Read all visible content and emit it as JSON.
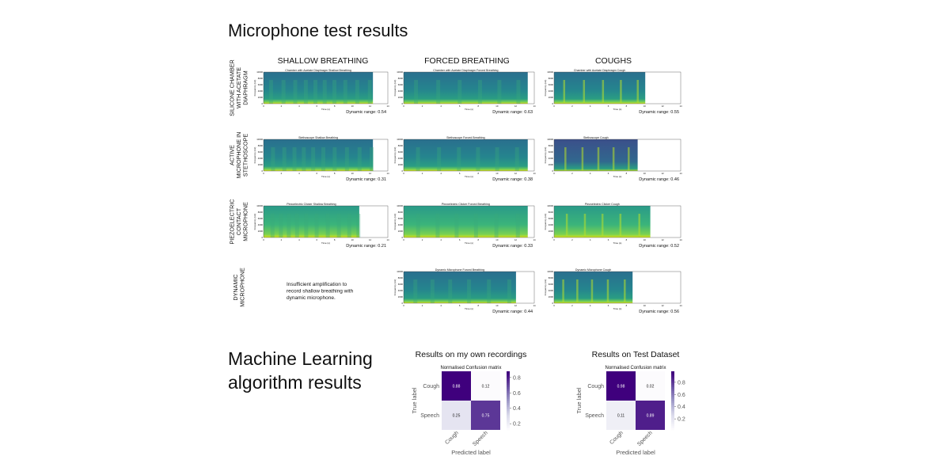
{
  "header": {
    "title": "Microphone test results"
  },
  "columns": [
    "SHALLOW BREATHING",
    "FORCED BREATHING",
    "COUGHS"
  ],
  "spectrogram_axes": {
    "x_label": "Time (s)",
    "y_label": "Frequency (Hz)",
    "xticks": [
      0,
      2,
      4,
      6,
      8,
      10,
      12,
      14
    ],
    "yticks": [
      0,
      2000,
      4000,
      6000,
      8000,
      10000
    ]
  },
  "rows": [
    {
      "label_lines": [
        "SILICONE CHAMBER",
        "WITH ACETATE",
        "DIAPHRAGM"
      ],
      "cells": [
        {
          "title": "Chamber with Acetate Diaphragm Shallow Breathing",
          "dynamic_range": "Dynamic range: 0.54"
        },
        {
          "title": "Chamber with Acetate Diaphragm Forced Breathing",
          "dynamic_range": "Dynamic range: 0.63"
        },
        {
          "title": "Chamber with Acetate Diaphragm Cough",
          "dynamic_range": "Dynamic range: 0.55"
        }
      ]
    },
    {
      "label_lines": [
        "ACTIVE",
        "MICROPHONE IN",
        "STETHOSCOPE"
      ],
      "cells": [
        {
          "title": "Stethoscope Shallow Breathing",
          "dynamic_range": "Dynamic range: 0.31"
        },
        {
          "title": "Stethoscope Forced Breathing",
          "dynamic_range": "Dynamic range: 0.38"
        },
        {
          "title": "Stethoscope Cough",
          "dynamic_range": "Dynamic range: 0.46"
        }
      ]
    },
    {
      "label_lines": [
        "PIEZOELECTRIC",
        "CONTACT",
        "MICROPHONE"
      ],
      "cells": [
        {
          "title": "Piezoelectric Clicker Shallow Breathing",
          "dynamic_range": "Dynamic range: 0.21"
        },
        {
          "title": "Piezoelectric Clicker Forced Breathing",
          "dynamic_range": "Dynamic range: 0.33"
        },
        {
          "title": "Piezoelectric Clicker Cough",
          "dynamic_range": "Dynamic range: 0.52"
        }
      ]
    },
    {
      "label_lines": [
        "DYNAMIC",
        "MICROPHONE"
      ],
      "cells": [
        {
          "note_lines": [
            "Insufficient amplification to",
            "record shallow breathing with",
            "dynamic microphone."
          ]
        },
        {
          "title": "Dynamic Microphone Forced Breathing",
          "dynamic_range": "Dynamic range: 0.44"
        },
        {
          "title": "Dynamic Microphone Cough",
          "dynamic_range": "Dynamic range: 0.56"
        }
      ]
    }
  ],
  "ml": {
    "title_lines": [
      "Machine Learning",
      "algorithm results"
    ],
    "matrices": [
      {
        "type": "heatmap",
        "heading": "Results on my own recordings",
        "title": "Normalised Confusion matrix",
        "x_label": "Predicted label",
        "y_label": "True label",
        "x_categories": [
          "Cough",
          "Speech"
        ],
        "y_categories": [
          "Cough",
          "Speech"
        ],
        "values": [
          [
            0.88,
            0.12
          ],
          [
            0.25,
            0.75
          ]
        ],
        "zlim": [
          0.12,
          0.88
        ],
        "zticks": [
          0.2,
          0.4,
          0.6,
          0.8
        ]
      },
      {
        "type": "heatmap",
        "heading": "Results on Test Dataset",
        "title": "Normalised Confusion matrix",
        "x_label": "Predicted label",
        "y_label": "True label",
        "x_categories": [
          "Cough",
          "Speech"
        ],
        "y_categories": [
          "Cough",
          "Speech"
        ],
        "values": [
          [
            0.98,
            0.02
          ],
          [
            0.11,
            0.89
          ]
        ],
        "zlim": [
          0.02,
          0.98
        ],
        "zticks": [
          0.2,
          0.4,
          0.6,
          0.8
        ]
      }
    ]
  }
}
